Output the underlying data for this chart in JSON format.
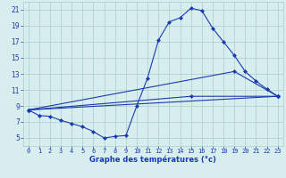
{
  "title": "Graphe des températures (°c)",
  "background_color": "#d8eeee",
  "grid_color": "#aacccc",
  "line_color": "#1a3ab0",
  "xlim": [
    -0.5,
    23.5
  ],
  "ylim": [
    4,
    22
  ],
  "xticks": [
    0,
    1,
    2,
    3,
    4,
    5,
    6,
    7,
    8,
    9,
    10,
    11,
    12,
    13,
    14,
    15,
    16,
    17,
    18,
    19,
    20,
    21,
    22,
    23
  ],
  "yticks": [
    5,
    7,
    9,
    11,
    13,
    15,
    17,
    19,
    21
  ],
  "line1_x": [
    0,
    1,
    2,
    3,
    4,
    5,
    6,
    7,
    8,
    9,
    10,
    11,
    12,
    13,
    14,
    15,
    16,
    17,
    18,
    19,
    20,
    21,
    22,
    23
  ],
  "line1_y": [
    8.5,
    7.8,
    7.7,
    7.2,
    6.8,
    6.4,
    5.8,
    5.0,
    5.2,
    5.3,
    9.0,
    12.5,
    17.2,
    19.5,
    20.0,
    21.2,
    20.9,
    18.7,
    17.0,
    15.3,
    13.3,
    12.1,
    11.1,
    10.2
  ],
  "line2_x": [
    0,
    23
  ],
  "line2_y": [
    8.5,
    10.2
  ],
  "line3_x": [
    0,
    15,
    23
  ],
  "line3_y": [
    8.5,
    10.2,
    10.2
  ],
  "line4_x": [
    0,
    19,
    23
  ],
  "line4_y": [
    8.5,
    13.3,
    10.2
  ],
  "xlabel_fontsize": 6.0,
  "tick_fontsize_x": 5.0,
  "tick_fontsize_y": 5.5
}
